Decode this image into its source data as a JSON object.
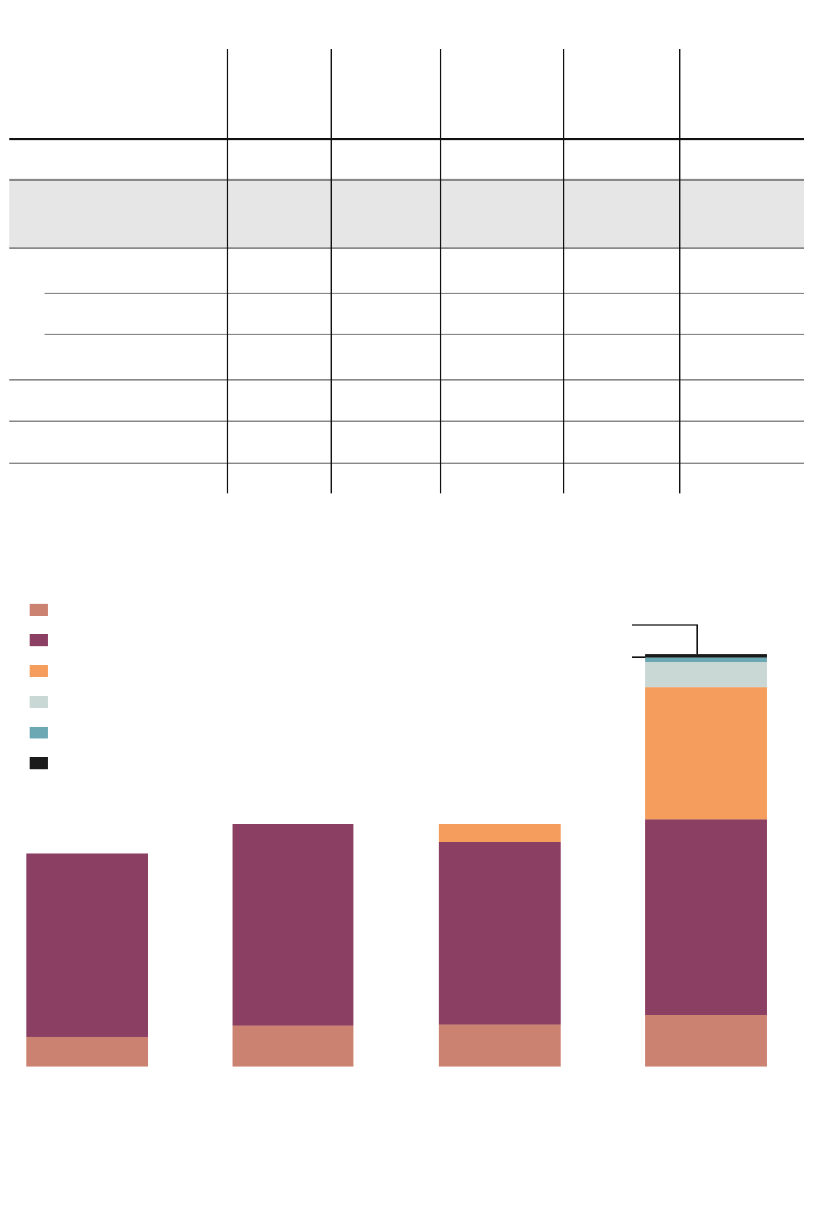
{
  "chart_data": {
    "type": "stacked_bar",
    "categories": [
      null,
      null,
      null,
      null
    ],
    "series": [
      {
        "color": "#cc8270",
        "values": [
          38,
          53,
          54,
          67
        ]
      },
      {
        "color": "#8b3f62",
        "values": [
          239,
          262,
          238,
          254
        ]
      },
      {
        "color": "#f59d5c",
        "values": [
          0,
          0,
          23,
          172
        ]
      },
      {
        "color": "#c9d8d4",
        "values": [
          0,
          0,
          0,
          33
        ]
      },
      {
        "color": "#6ca8b4",
        "values": [
          0,
          0,
          0,
          6
        ]
      },
      {
        "color": "#1a1a1a",
        "values": [
          0,
          0,
          0,
          4
        ]
      }
    ],
    "ylim": [
      0,
      540
    ]
  }
}
